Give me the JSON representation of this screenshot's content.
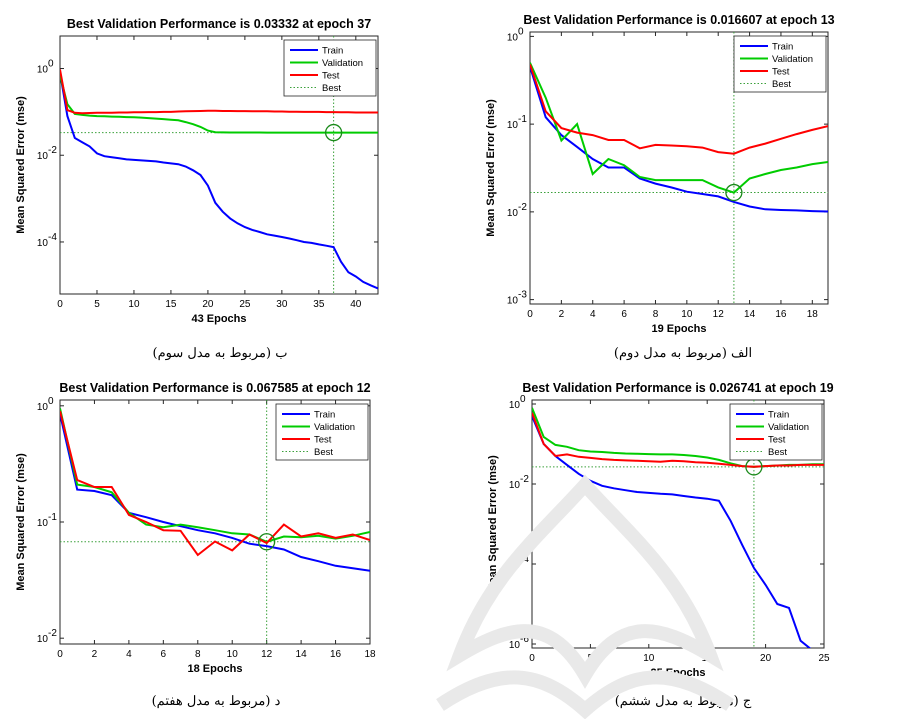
{
  "chart_data": [
    {
      "type": "line",
      "panel": "top-left",
      "title": "Best Validation Performance is 0.03332 at epoch 37",
      "xlabel": "43 Epochs",
      "ylabel": "Mean Squared Error  (mse)",
      "caption": "ب (مربوط به مدل سوم)",
      "xlim": [
        0,
        43
      ],
      "ylim_log10": [
        -5.2,
        0.75
      ],
      "xticks": [
        0,
        5,
        10,
        15,
        20,
        25,
        30,
        35,
        40
      ],
      "yticks": [
        {
          "exp": -4,
          "label": "10"
        },
        {
          "exp": -2,
          "label": "10"
        },
        {
          "exp": 0,
          "label": "10"
        }
      ],
      "legend_position": "top-right",
      "legend": [
        "Train",
        "Validation",
        "Test",
        "Best"
      ],
      "best": {
        "epoch": 37,
        "value": 0.03332
      },
      "series": [
        {
          "name": "Train",
          "color": "#0000ff",
          "x": [
            0,
            1,
            2,
            3,
            4,
            5,
            6,
            7,
            8,
            9,
            10,
            11,
            12,
            13,
            14,
            15,
            16,
            17,
            18,
            19,
            20,
            21,
            22,
            23,
            24,
            25,
            26,
            27,
            28,
            29,
            30,
            31,
            32,
            33,
            34,
            35,
            36,
            37,
            38,
            39,
            40,
            41,
            42,
            43
          ],
          "y": [
            0.8,
            0.08,
            0.025,
            0.02,
            0.016,
            0.011,
            0.0095,
            0.009,
            0.0085,
            0.008,
            0.0078,
            0.0076,
            0.0074,
            0.0072,
            0.0068,
            0.0065,
            0.0062,
            0.0055,
            0.0045,
            0.0035,
            0.002,
            0.0008,
            0.0005,
            0.00035,
            0.00027,
            0.00022,
            0.00019,
            0.00017,
            0.00015,
            0.00014,
            0.00013,
            0.00012,
            0.00011,
            0.0001,
            9.5e-05,
            8.8e-05,
            8.2e-05,
            7.6e-05,
            3.5e-05,
            2e-05,
            1.6e-05,
            1.2e-05,
            1e-05,
            8.5e-06
          ]
        },
        {
          "name": "Validation",
          "color": "#00cc00",
          "x": [
            0,
            1,
            2,
            3,
            4,
            5,
            6,
            7,
            8,
            9,
            10,
            11,
            12,
            13,
            14,
            15,
            16,
            17,
            18,
            19,
            20,
            21,
            22,
            23,
            24,
            25,
            26,
            27,
            28,
            29,
            30,
            31,
            32,
            33,
            34,
            35,
            36,
            37,
            38,
            39,
            40,
            41,
            42,
            43
          ],
          "y": [
            0.7,
            0.15,
            0.09,
            0.085,
            0.082,
            0.08,
            0.079,
            0.078,
            0.077,
            0.076,
            0.075,
            0.074,
            0.072,
            0.07,
            0.068,
            0.066,
            0.064,
            0.058,
            0.052,
            0.045,
            0.037,
            0.034,
            0.0336,
            0.0335,
            0.0335,
            0.0334,
            0.0334,
            0.0334,
            0.0333,
            0.0333,
            0.0333,
            0.0333,
            0.0333,
            0.0333,
            0.0333,
            0.0333,
            0.0333,
            0.03332,
            0.0333,
            0.0333,
            0.0333,
            0.0333,
            0.0333,
            0.0333
          ]
        },
        {
          "name": "Test",
          "color": "#ff0000",
          "x": [
            0,
            1,
            2,
            3,
            4,
            5,
            6,
            7,
            8,
            9,
            10,
            11,
            12,
            13,
            14,
            15,
            16,
            17,
            18,
            19,
            20,
            21,
            22,
            23,
            24,
            25,
            26,
            27,
            28,
            29,
            30,
            31,
            32,
            33,
            34,
            35,
            36,
            37,
            38,
            39,
            40,
            41,
            42,
            43
          ],
          "y": [
            0.95,
            0.11,
            0.095,
            0.093,
            0.094,
            0.095,
            0.096,
            0.096,
            0.097,
            0.097,
            0.098,
            0.098,
            0.099,
            0.099,
            0.1,
            0.1,
            0.102,
            0.103,
            0.104,
            0.105,
            0.106,
            0.106,
            0.105,
            0.105,
            0.104,
            0.104,
            0.103,
            0.103,
            0.103,
            0.102,
            0.102,
            0.101,
            0.101,
            0.1,
            0.1,
            0.1,
            0.099,
            0.099,
            0.098,
            0.098,
            0.097,
            0.097,
            0.097,
            0.097
          ]
        }
      ]
    },
    {
      "type": "line",
      "panel": "top-right",
      "title": "Best Validation Performance is 0.016607 at epoch 13",
      "xlabel": "19 Epochs",
      "ylabel": "Mean Squared Error  (mse)",
      "caption": "الف (مربوط به مدل دوم)",
      "xlim": [
        0,
        19
      ],
      "ylim_log10": [
        -3.05,
        0.05
      ],
      "xticks": [
        0,
        2,
        4,
        6,
        8,
        10,
        12,
        14,
        16,
        18
      ],
      "yticks": [
        {
          "exp": -3,
          "label": "10"
        },
        {
          "exp": -2,
          "label": "10"
        },
        {
          "exp": -1,
          "label": "10"
        },
        {
          "exp": 0,
          "label": "10"
        }
      ],
      "legend_position": "top-right",
      "legend": [
        "Train",
        "Validation",
        "Test",
        "Best"
      ],
      "best": {
        "epoch": 13,
        "value": 0.016607
      },
      "series": [
        {
          "name": "Train",
          "color": "#0000ff",
          "x": [
            0,
            1,
            2,
            3,
            4,
            5,
            6,
            7,
            8,
            9,
            10,
            11,
            12,
            13,
            14,
            15,
            16,
            17,
            18,
            19
          ],
          "y": [
            0.45,
            0.12,
            0.075,
            0.055,
            0.04,
            0.032,
            0.032,
            0.024,
            0.021,
            0.019,
            0.017,
            0.016,
            0.015,
            0.013,
            0.0115,
            0.0107,
            0.0105,
            0.0104,
            0.0102,
            0.0101
          ]
        },
        {
          "name": "Validation",
          "color": "#00cc00",
          "x": [
            0,
            1,
            2,
            3,
            4,
            5,
            6,
            7,
            8,
            9,
            10,
            11,
            12,
            13,
            14,
            15,
            16,
            17,
            18,
            19
          ],
          "y": [
            0.5,
            0.2,
            0.065,
            0.1,
            0.027,
            0.04,
            0.034,
            0.025,
            0.023,
            0.023,
            0.023,
            0.023,
            0.019,
            0.0166,
            0.024,
            0.027,
            0.03,
            0.032,
            0.035,
            0.037
          ]
        },
        {
          "name": "Test",
          "color": "#ff0000",
          "x": [
            0,
            1,
            2,
            3,
            4,
            5,
            6,
            7,
            8,
            9,
            10,
            11,
            12,
            13,
            14,
            15,
            16,
            17,
            18,
            19
          ],
          "y": [
            0.48,
            0.14,
            0.09,
            0.08,
            0.075,
            0.066,
            0.066,
            0.053,
            0.058,
            0.057,
            0.056,
            0.054,
            0.048,
            0.046,
            0.054,
            0.06,
            0.068,
            0.077,
            0.086,
            0.095
          ]
        }
      ]
    },
    {
      "type": "line",
      "panel": "bottom-left",
      "title": "Best Validation Performance is 0.067585 at epoch 12",
      "xlabel": "18 Epochs",
      "ylabel": "Mean Squared Error  (mse)",
      "caption": "د (مربوط به مدل هفتم)",
      "xlim": [
        0,
        18
      ],
      "ylim_log10": [
        -2.05,
        0.05
      ],
      "xticks": [
        0,
        2,
        4,
        6,
        8,
        10,
        12,
        14,
        16,
        18
      ],
      "yticks": [
        {
          "exp": -2,
          "label": "10"
        },
        {
          "exp": -1,
          "label": "10"
        },
        {
          "exp": 0,
          "label": "10"
        }
      ],
      "legend_position": "top-right",
      "legend": [
        "Train",
        "Validation",
        "Test",
        "Best"
      ],
      "best": {
        "epoch": 12,
        "value": 0.067585
      },
      "series": [
        {
          "name": "Train",
          "color": "#0000ff",
          "x": [
            0,
            1,
            2,
            3,
            4,
            5,
            6,
            7,
            8,
            9,
            10,
            11,
            12,
            13,
            14,
            15,
            16,
            17,
            18
          ],
          "y": [
            0.85,
            0.19,
            0.185,
            0.17,
            0.12,
            0.11,
            0.1,
            0.092,
            0.085,
            0.08,
            0.073,
            0.065,
            0.062,
            0.058,
            0.05,
            0.046,
            0.042,
            0.04,
            0.038
          ]
        },
        {
          "name": "Validation",
          "color": "#00cc00",
          "x": [
            0,
            1,
            2,
            3,
            4,
            5,
            6,
            7,
            8,
            9,
            10,
            11,
            12,
            13,
            14,
            15,
            16,
            17,
            18
          ],
          "y": [
            0.95,
            0.21,
            0.2,
            0.18,
            0.12,
            0.095,
            0.09,
            0.095,
            0.09,
            0.085,
            0.08,
            0.078,
            0.0676,
            0.075,
            0.074,
            0.076,
            0.072,
            0.076,
            0.082
          ]
        },
        {
          "name": "Test",
          "color": "#ff0000",
          "x": [
            0,
            1,
            2,
            3,
            4,
            5,
            6,
            7,
            8,
            9,
            10,
            11,
            12,
            13,
            14,
            15,
            16,
            17,
            18
          ],
          "y": [
            0.9,
            0.23,
            0.2,
            0.2,
            0.115,
            0.1,
            0.085,
            0.084,
            0.052,
            0.068,
            0.057,
            0.078,
            0.066,
            0.095,
            0.075,
            0.08,
            0.073,
            0.078,
            0.07
          ]
        }
      ]
    },
    {
      "type": "line",
      "panel": "bottom-right",
      "title": "Best Validation Performance is 0.026741 at epoch 19",
      "xlabel": "25 Epochs",
      "ylabel": "Mean Squared Error  (mse)",
      "caption": "ج (مربوط به مدل ششم)",
      "xlim": [
        0,
        25
      ],
      "ylim_log10": [
        -6.1,
        0.1
      ],
      "xticks": [
        0,
        5,
        10,
        15,
        20,
        25
      ],
      "yticks": [
        {
          "exp": -6,
          "label": "10"
        },
        {
          "exp": -4,
          "label": "10"
        },
        {
          "exp": -2,
          "label": "10"
        },
        {
          "exp": 0,
          "label": "10"
        }
      ],
      "legend_position": "top-right",
      "legend": [
        "Train",
        "Validation",
        "Test",
        "Best"
      ],
      "best": {
        "epoch": 19,
        "value": 0.026741
      },
      "series": [
        {
          "name": "Train",
          "color": "#0000ff",
          "x": [
            0,
            1,
            2,
            3,
            4,
            5,
            6,
            7,
            8,
            9,
            10,
            11,
            12,
            13,
            14,
            15,
            16,
            17,
            18,
            19,
            20,
            21,
            22,
            23,
            24,
            25
          ],
          "y": [
            0.5,
            0.1,
            0.05,
            0.03,
            0.018,
            0.012,
            0.009,
            0.0078,
            0.007,
            0.0063,
            0.006,
            0.0057,
            0.0055,
            0.005,
            0.0046,
            0.0043,
            0.0038,
            0.0012,
            0.0003,
            8e-05,
            3e-05,
            1e-05,
            8e-06,
            1.2e-06,
            7e-07,
            5e-07
          ]
        },
        {
          "name": "Validation",
          "color": "#00cc00",
          "x": [
            0,
            1,
            2,
            3,
            4,
            5,
            6,
            7,
            8,
            9,
            10,
            11,
            12,
            13,
            14,
            15,
            16,
            17,
            18,
            19,
            20,
            21,
            22,
            23,
            24,
            25
          ],
          "y": [
            0.8,
            0.15,
            0.095,
            0.085,
            0.07,
            0.065,
            0.063,
            0.06,
            0.058,
            0.057,
            0.056,
            0.055,
            0.055,
            0.053,
            0.05,
            0.046,
            0.04,
            0.033,
            0.028,
            0.0267,
            0.028,
            0.029,
            0.03,
            0.03,
            0.031,
            0.031
          ]
        },
        {
          "name": "Test",
          "color": "#ff0000",
          "x": [
            0,
            1,
            2,
            3,
            4,
            5,
            6,
            7,
            8,
            9,
            10,
            11,
            12,
            13,
            14,
            15,
            16,
            17,
            18,
            19,
            20,
            21,
            22,
            23,
            24,
            25
          ],
          "y": [
            0.6,
            0.1,
            0.05,
            0.055,
            0.048,
            0.045,
            0.042,
            0.04,
            0.039,
            0.038,
            0.037,
            0.036,
            0.038,
            0.037,
            0.035,
            0.034,
            0.032,
            0.03,
            0.028,
            0.027,
            0.028,
            0.029,
            0.029,
            0.03,
            0.03,
            0.03
          ]
        }
      ]
    }
  ]
}
